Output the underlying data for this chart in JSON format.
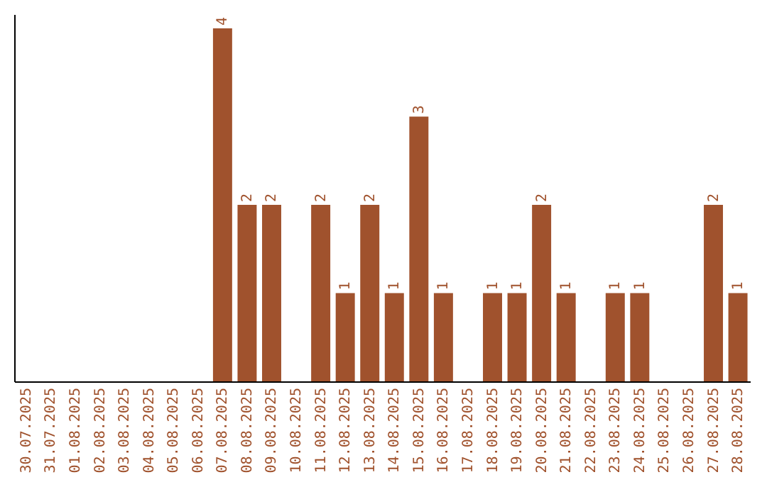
{
  "chart_data": {
    "type": "bar",
    "categories": [
      "30.07.2025",
      "31.07.2025",
      "01.08.2025",
      "02.08.2025",
      "03.08.2025",
      "04.08.2025",
      "05.08.2025",
      "06.08.2025",
      "07.08.2025",
      "08.08.2025",
      "09.08.2025",
      "10.08.2025",
      "11.08.2025",
      "12.08.2025",
      "13.08.2025",
      "14.08.2025",
      "15.08.2025",
      "16.08.2025",
      "17.08.2025",
      "18.08.2025",
      "19.08.2025",
      "20.08.2025",
      "21.08.2025",
      "22.08.2025",
      "23.08.2025",
      "24.08.2025",
      "25.08.2025",
      "26.08.2025",
      "27.08.2025",
      "28.08.2025"
    ],
    "values": [
      0,
      0,
      0,
      0,
      0,
      0,
      0,
      0,
      4,
      2,
      2,
      0,
      2,
      1,
      2,
      1,
      3,
      1,
      0,
      1,
      1,
      2,
      1,
      0,
      1,
      1,
      0,
      0,
      2,
      1
    ],
    "value_labels": [
      null,
      null,
      null,
      null,
      null,
      null,
      null,
      null,
      "4",
      "2",
      "2",
      null,
      "2",
      "1",
      "2",
      "1",
      "3",
      "1",
      null,
      "1",
      "1",
      "2",
      "1",
      null,
      "1",
      "1",
      null,
      null,
      "2",
      "1"
    ],
    "color": "#a0522d"
  }
}
